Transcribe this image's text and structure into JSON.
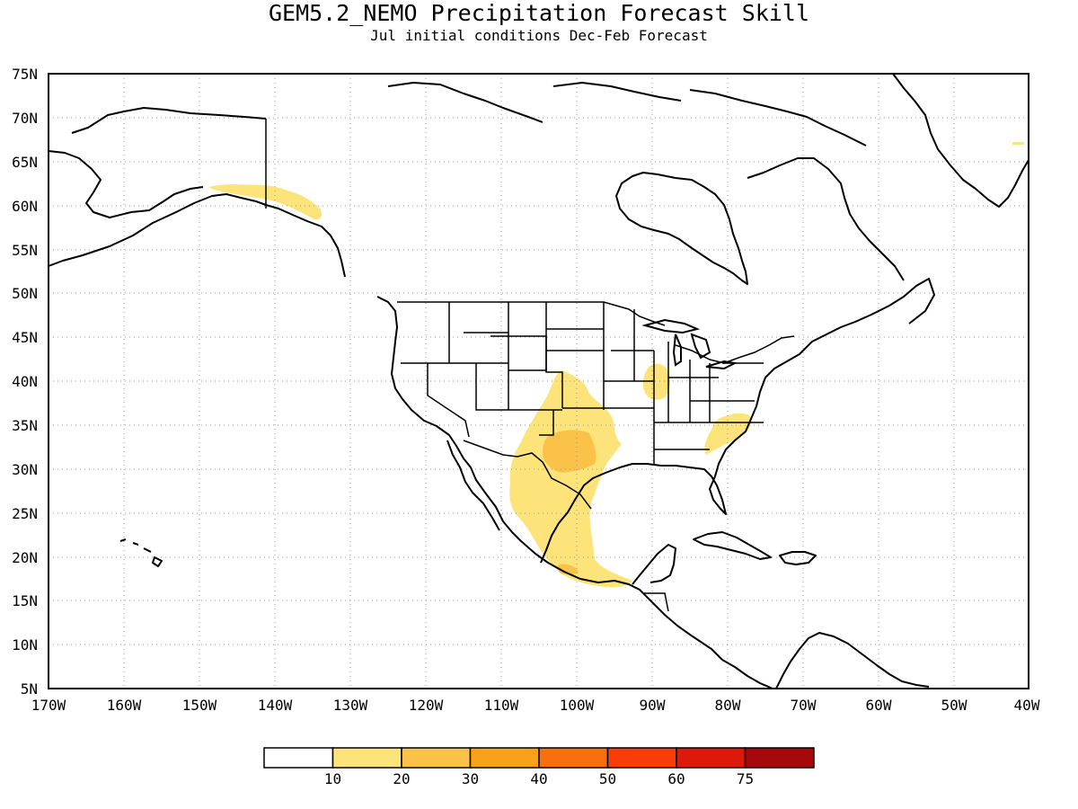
{
  "title": "GEM5.2_NEMO Precipitation Forecast Skill",
  "subtitle": "Jul initial conditions  Dec-Feb Forecast",
  "lat_labels": [
    "75N",
    "70N",
    "65N",
    "60N",
    "55N",
    "50N",
    "45N",
    "40N",
    "35N",
    "30N",
    "25N",
    "20N",
    "15N",
    "10N",
    "5N"
  ],
  "lon_labels": [
    "170W",
    "160W",
    "150W",
    "140W",
    "130W",
    "120W",
    "110W",
    "100W",
    "90W",
    "80W",
    "70W",
    "60W",
    "50W",
    "40W"
  ],
  "legend": {
    "ticks": [
      "10",
      "20",
      "30",
      "40",
      "50",
      "60",
      "75"
    ],
    "colors": [
      "#ffffff",
      "#fde47a",
      "#fbc24a",
      "#f9a11a",
      "#f8700e",
      "#f73d08",
      "#dc1a09",
      "#a4090c"
    ]
  },
  "colors": {
    "skill_10_20": "#fde47a",
    "skill_20_30": "#fbc24a",
    "grid": "#9a9a9a",
    "coast": "#000000"
  },
  "extent": {
    "lon": [
      -170,
      -40
    ],
    "lat": [
      5,
      75
    ]
  },
  "chart_data": {
    "type": "heatmap",
    "title": "GEM5.2_NEMO Precipitation Forecast Skill",
    "subtitle": "Jul initial conditions  Dec-Feb Forecast",
    "xlim": [
      -170,
      -40
    ],
    "ylim": [
      5,
      75
    ],
    "grid": true,
    "legend_placement": "bottom",
    "legend_bins": [
      "10",
      "20",
      "30",
      "40",
      "50",
      "60",
      "75"
    ],
    "regions": [
      {
        "name": "",
        "level": "10-20",
        "lon": [
          -148,
          -130
        ],
        "lat": [
          58.5,
          62
        ]
      },
      {
        "name": "",
        "level": "10-20",
        "lon": [
          -112,
          -96
        ],
        "lat": [
          29,
          38
        ]
      },
      {
        "name": "",
        "level": "10-20",
        "lon": [
          -110,
          -98
        ],
        "lat": [
          18,
          30
        ]
      },
      {
        "name": "",
        "level": "10-20",
        "lon": [
          -104,
          -94
        ],
        "lat": [
          16.5,
          20
        ]
      },
      {
        "name": "",
        "level": "10-20",
        "lon": [
          -91,
          -88
        ],
        "lat": [
          38,
          42
        ]
      },
      {
        "name": "",
        "level": "10-20",
        "lon": [
          -83,
          -79
        ],
        "lat": [
          31,
          35
        ]
      },
      {
        "name": "",
        "level": "20-30",
        "lon": [
          -105,
          -100
        ],
        "lat": [
          30.5,
          33
        ]
      },
      {
        "name": "",
        "level": "20-30",
        "lon": [
          -103,
          -101
        ],
        "lat": [
          17,
          18.5
        ]
      }
    ]
  }
}
